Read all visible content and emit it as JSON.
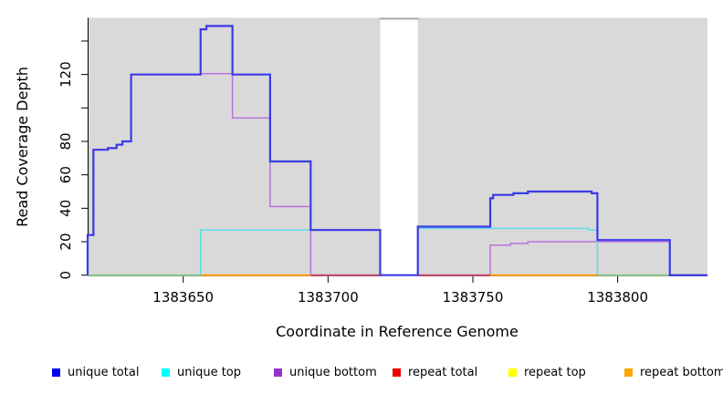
{
  "chart_data": {
    "type": "line",
    "subtype": "step-coverage",
    "title": "",
    "xlabel": "Coordinate in Reference Genome",
    "ylabel": "Read Coverage Depth",
    "xlim": [
      1383617,
      1383831
    ],
    "ylim": [
      0,
      154
    ],
    "panel_color": "#d9d9d9",
    "gap_color": "#ffffff",
    "gap_top_line_color": "#a9a9a9",
    "axis_color": "#000000",
    "grid": false,
    "gap": {
      "start": 1383718,
      "end": 1383731
    },
    "xticks": [
      {
        "v": 1383650,
        "label": "1383650"
      },
      {
        "v": 1383700,
        "label": "1383700"
      },
      {
        "v": 1383750,
        "label": "1383750"
      },
      {
        "v": 1383800,
        "label": "1383800"
      }
    ],
    "yticks": [
      {
        "v": 0,
        "label": "0"
      },
      {
        "v": 20,
        "label": "20"
      },
      {
        "v": 40,
        "label": "40"
      },
      {
        "v": 60,
        "label": "60"
      },
      {
        "v": 80,
        "label": "80"
      },
      {
        "v": 100,
        "label": ""
      },
      {
        "v": 120,
        "label": "120"
      },
      {
        "v": 140,
        "label": ""
      }
    ],
    "series": [
      {
        "name": "unique bottom",
        "color": "#b873dc",
        "width": 1.5,
        "paths": [
          {
            "points": [
              [
                1383617,
                24
              ],
              [
                1383619,
                75
              ],
              [
                1383624,
                76
              ],
              [
                1383627,
                78
              ],
              [
                1383629,
                80
              ],
              [
                1383632,
                120
              ],
              [
                1383656,
                120.5
              ],
              [
                1383667,
                94
              ],
              [
                1383680,
                41
              ],
              [
                1383694,
                0
              ]
            ],
            "end": 1383718,
            "fromZero": true,
            "toZero": false
          },
          {
            "points": [
              [
                1383756,
                18
              ],
              [
                1383763,
                19
              ],
              [
                1383769,
                20
              ],
              [
                1383818,
                0
              ]
            ],
            "end": 1383831,
            "fromZero": true,
            "toZero": false
          }
        ]
      },
      {
        "name": "repeat total",
        "color": "#c94a6e",
        "width": 2,
        "paths": [
          {
            "points": [
              [
                1383694,
                0
              ]
            ],
            "end": 1383718,
            "fromZero": false,
            "toZero": false
          },
          {
            "points": [
              [
                1383731,
                0
              ]
            ],
            "end": 1383756,
            "fromZero": false,
            "toZero": false
          }
        ]
      },
      {
        "name": "repeat top",
        "color": "#8fc98f",
        "width": 2,
        "paths": [
          {
            "points": [
              [
                1383617,
                0
              ]
            ],
            "end": 1383656,
            "fromZero": false,
            "toZero": false
          },
          {
            "points": [
              [
                1383793,
                0
              ]
            ],
            "end": 1383818,
            "fromZero": false,
            "toZero": false
          }
        ]
      },
      {
        "name": "repeat bottom",
        "color": "#ffa500",
        "width": 2,
        "paths": [
          {
            "points": [
              [
                1383656,
                0
              ]
            ],
            "end": 1383694,
            "fromZero": false,
            "toZero": false
          },
          {
            "points": [
              [
                1383756,
                0
              ]
            ],
            "end": 1383793,
            "fromZero": false,
            "toZero": false
          }
        ]
      },
      {
        "name": "unique top",
        "color": "#5bdde8",
        "width": 1.5,
        "paths": [
          {
            "points": [
              [
                1383656,
                27
              ]
            ],
            "end": 1383718,
            "fromZero": true,
            "toZero": true
          },
          {
            "points": [
              [
                1383731,
                28
              ],
              [
                1383790,
                27
              ]
            ],
            "end": 1383793,
            "fromZero": true,
            "toZero": true
          }
        ]
      },
      {
        "name": "unique total",
        "color": "#3a3ae8",
        "width": 2.2,
        "paths": [
          {
            "points": [
              [
                1383617,
                24
              ],
              [
                1383619,
                75
              ],
              [
                1383624,
                76
              ],
              [
                1383627,
                78
              ],
              [
                1383629,
                80
              ],
              [
                1383632,
                120
              ],
              [
                1383656,
                147
              ],
              [
                1383658,
                149
              ],
              [
                1383667,
                120
              ],
              [
                1383680,
                68
              ],
              [
                1383694,
                27
              ],
              [
                1383718,
                0
              ],
              [
                1383731,
                29
              ],
              [
                1383756,
                46
              ],
              [
                1383757,
                48
              ],
              [
                1383764,
                49
              ],
              [
                1383769,
                50
              ],
              [
                1383791,
                49
              ],
              [
                1383793,
                21
              ],
              [
                1383818,
                0
              ]
            ],
            "end": 1383831,
            "fromZero": true,
            "toZero": false
          }
        ]
      }
    ],
    "legend_position": "bottom",
    "legend": [
      {
        "label": "unique total",
        "color": "#0000ee"
      },
      {
        "label": "unique top",
        "color": "#00ffff"
      },
      {
        "label": "unique bottom",
        "color": "#9932cc"
      },
      {
        "label": "repeat total",
        "color": "#ee0000"
      },
      {
        "label": "repeat top",
        "color": "#ffff00"
      },
      {
        "label": "repeat bottom",
        "color": "#ffa500"
      }
    ]
  }
}
